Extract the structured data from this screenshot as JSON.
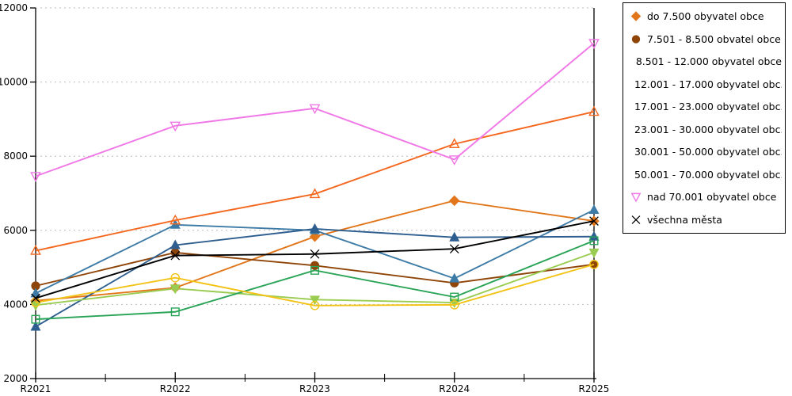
{
  "colors": {
    "background": "#ffffff",
    "axis": "#000000",
    "gridline": "#bcbcbc",
    "legend_border": "#000000"
  },
  "chart_data": {
    "type": "line",
    "title": "",
    "xlabel": "",
    "ylabel": "",
    "categories": [
      "R2021",
      "R2022",
      "R2023",
      "R2024",
      "R2025"
    ],
    "ylim": [
      2000,
      12000
    ],
    "yticks": [
      2000,
      4000,
      6000,
      8000,
      10000,
      12000
    ],
    "grid": "horizontal dotted",
    "legend_position": "outside top-right",
    "series": [
      {
        "name": "do 7.500 obyvatel obce",
        "marker": "diamond",
        "filled": true,
        "color": "#e2761b",
        "values": [
          4100,
          4450,
          5830,
          6800,
          6250
        ]
      },
      {
        "name": "7.501 - 8.500 obvatel obce",
        "marker": "circle",
        "filled": true,
        "color": "#8f4408",
        "values": [
          4500,
          5400,
          5050,
          4580,
          5080
        ]
      },
      {
        "name": "8.501 - 12.000 obyvatel obce",
        "marker": "triangle-up",
        "filled": true,
        "color": "#3d7ba6",
        "values": [
          4300,
          6150,
          6000,
          4700,
          6550
        ]
      },
      {
        "name": "12.001 - 17.000 obyvatel obc...",
        "marker": "triangle-up",
        "filled": true,
        "color": "#2e5e8f",
        "values": [
          3400,
          5600,
          6040,
          5810,
          5830
        ]
      },
      {
        "name": "17.001 - 23.000 obyvatel obc...",
        "marker": "triangle-down",
        "filled": true,
        "color": "#9acc52",
        "values": [
          3980,
          4430,
          4130,
          4050,
          5400
        ]
      },
      {
        "name": "23.001 - 30.000 obyvatel obc...",
        "marker": "square",
        "filled": false,
        "color": "#2aa457",
        "values": [
          3600,
          3800,
          4920,
          4200,
          5720
        ]
      },
      {
        "name": "30.001 - 50.000 obyvatel obc...",
        "marker": "circle",
        "filled": false,
        "color": "#f2c314",
        "values": [
          4050,
          4720,
          3970,
          3990,
          5080
        ]
      },
      {
        "name": "50.001 - 70.000 obyvatel obc...",
        "marker": "triangle-up",
        "filled": false,
        "color": "#f4671f",
        "values": [
          5450,
          6270,
          6980,
          8330,
          9200
        ]
      },
      {
        "name": "nad 70.001 obyvatel obce",
        "marker": "triangle-down",
        "filled": false,
        "color": "#f078e6",
        "values": [
          7460,
          8820,
          9290,
          7910,
          11050
        ]
      },
      {
        "name": "všechna města",
        "marker": "x",
        "filled": false,
        "color": "#000000",
        "values": [
          4170,
          5320,
          5360,
          5500,
          6250
        ]
      }
    ]
  }
}
